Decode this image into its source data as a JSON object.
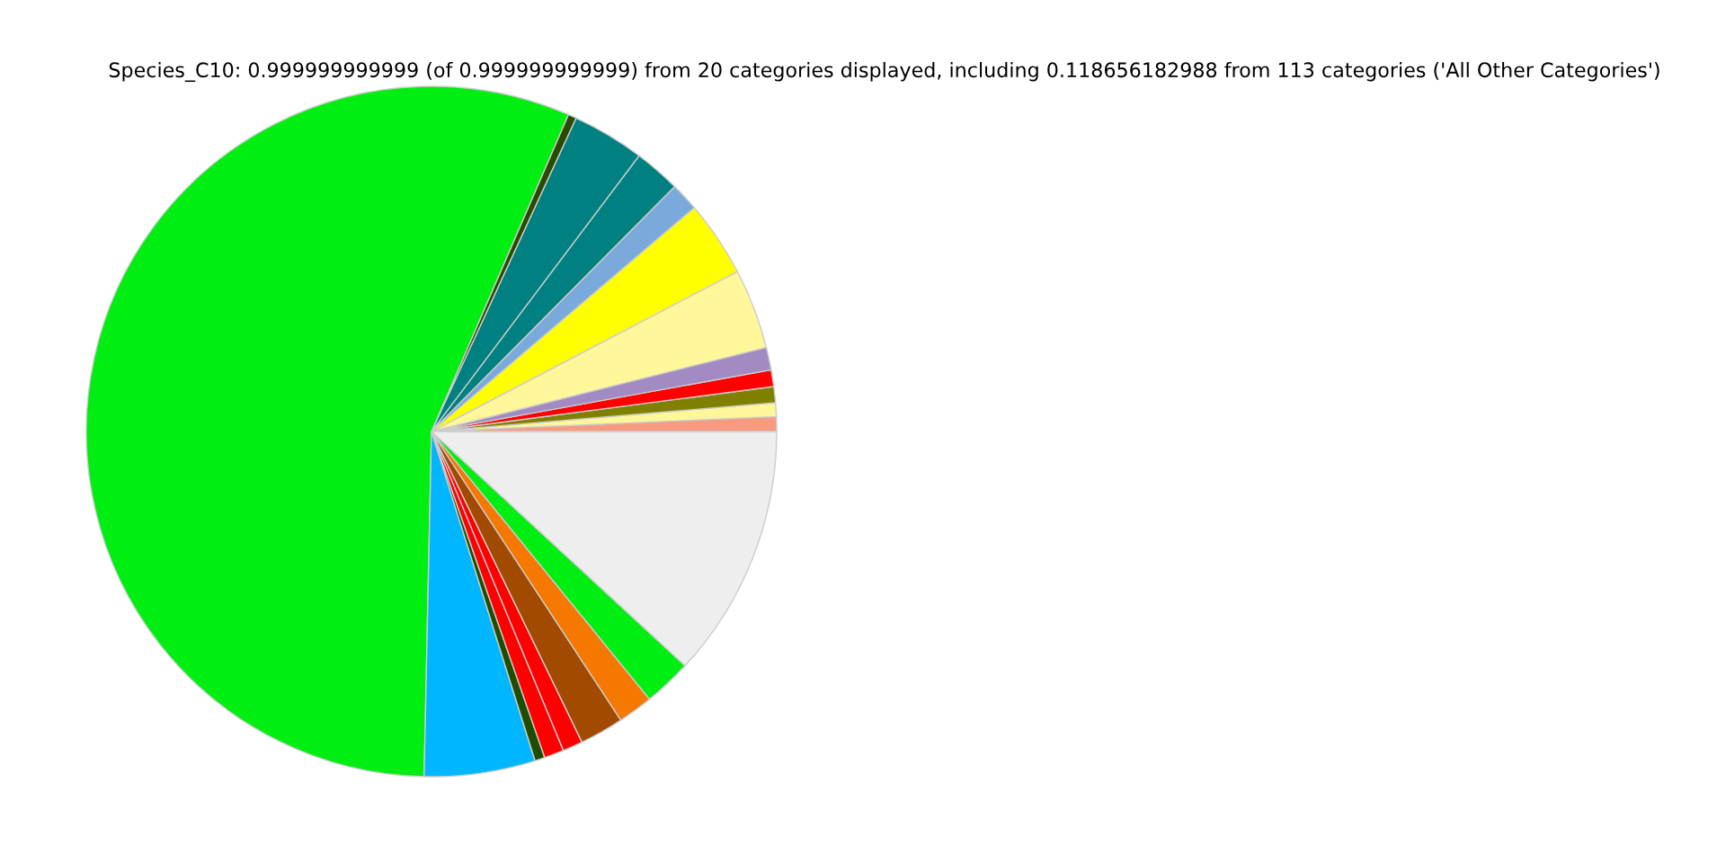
{
  "chart_data": {
    "type": "pie",
    "title": "Species_C10: 0.999999999999 (of 0.999999999999) from 20 categories displayed, including 0.118656182988 from 113 categories ('All Other Categories')",
    "categories": [
      null,
      null,
      null,
      null,
      null,
      null,
      null,
      null,
      null,
      null,
      null,
      null,
      null,
      null,
      null,
      null,
      null,
      null,
      null,
      null
    ],
    "values": [
      0.69,
      0.64,
      0.75,
      0.78,
      1.06,
      3.75,
      3.56,
      1.33,
      2.17,
      3.39,
      0.39,
      56.15,
      5.19,
      0.47,
      0.92,
      0.94,
      2.06,
      1.64,
      2.25,
      11.87
    ],
    "colors": [
      "#f79a80",
      "#fff799",
      "#808000",
      "#ff0000",
      "#a28ac2",
      "#fff799",
      "#ffff00",
      "#7aa9dc",
      "#008080",
      "#008080",
      "#2a4a00",
      "#00ee11",
      "#00b7ff",
      "#1f4d00",
      "#ff0000",
      "#ff0000",
      "#a24a00",
      "#f57800",
      "#00ee11",
      "#eeeeee"
    ]
  }
}
